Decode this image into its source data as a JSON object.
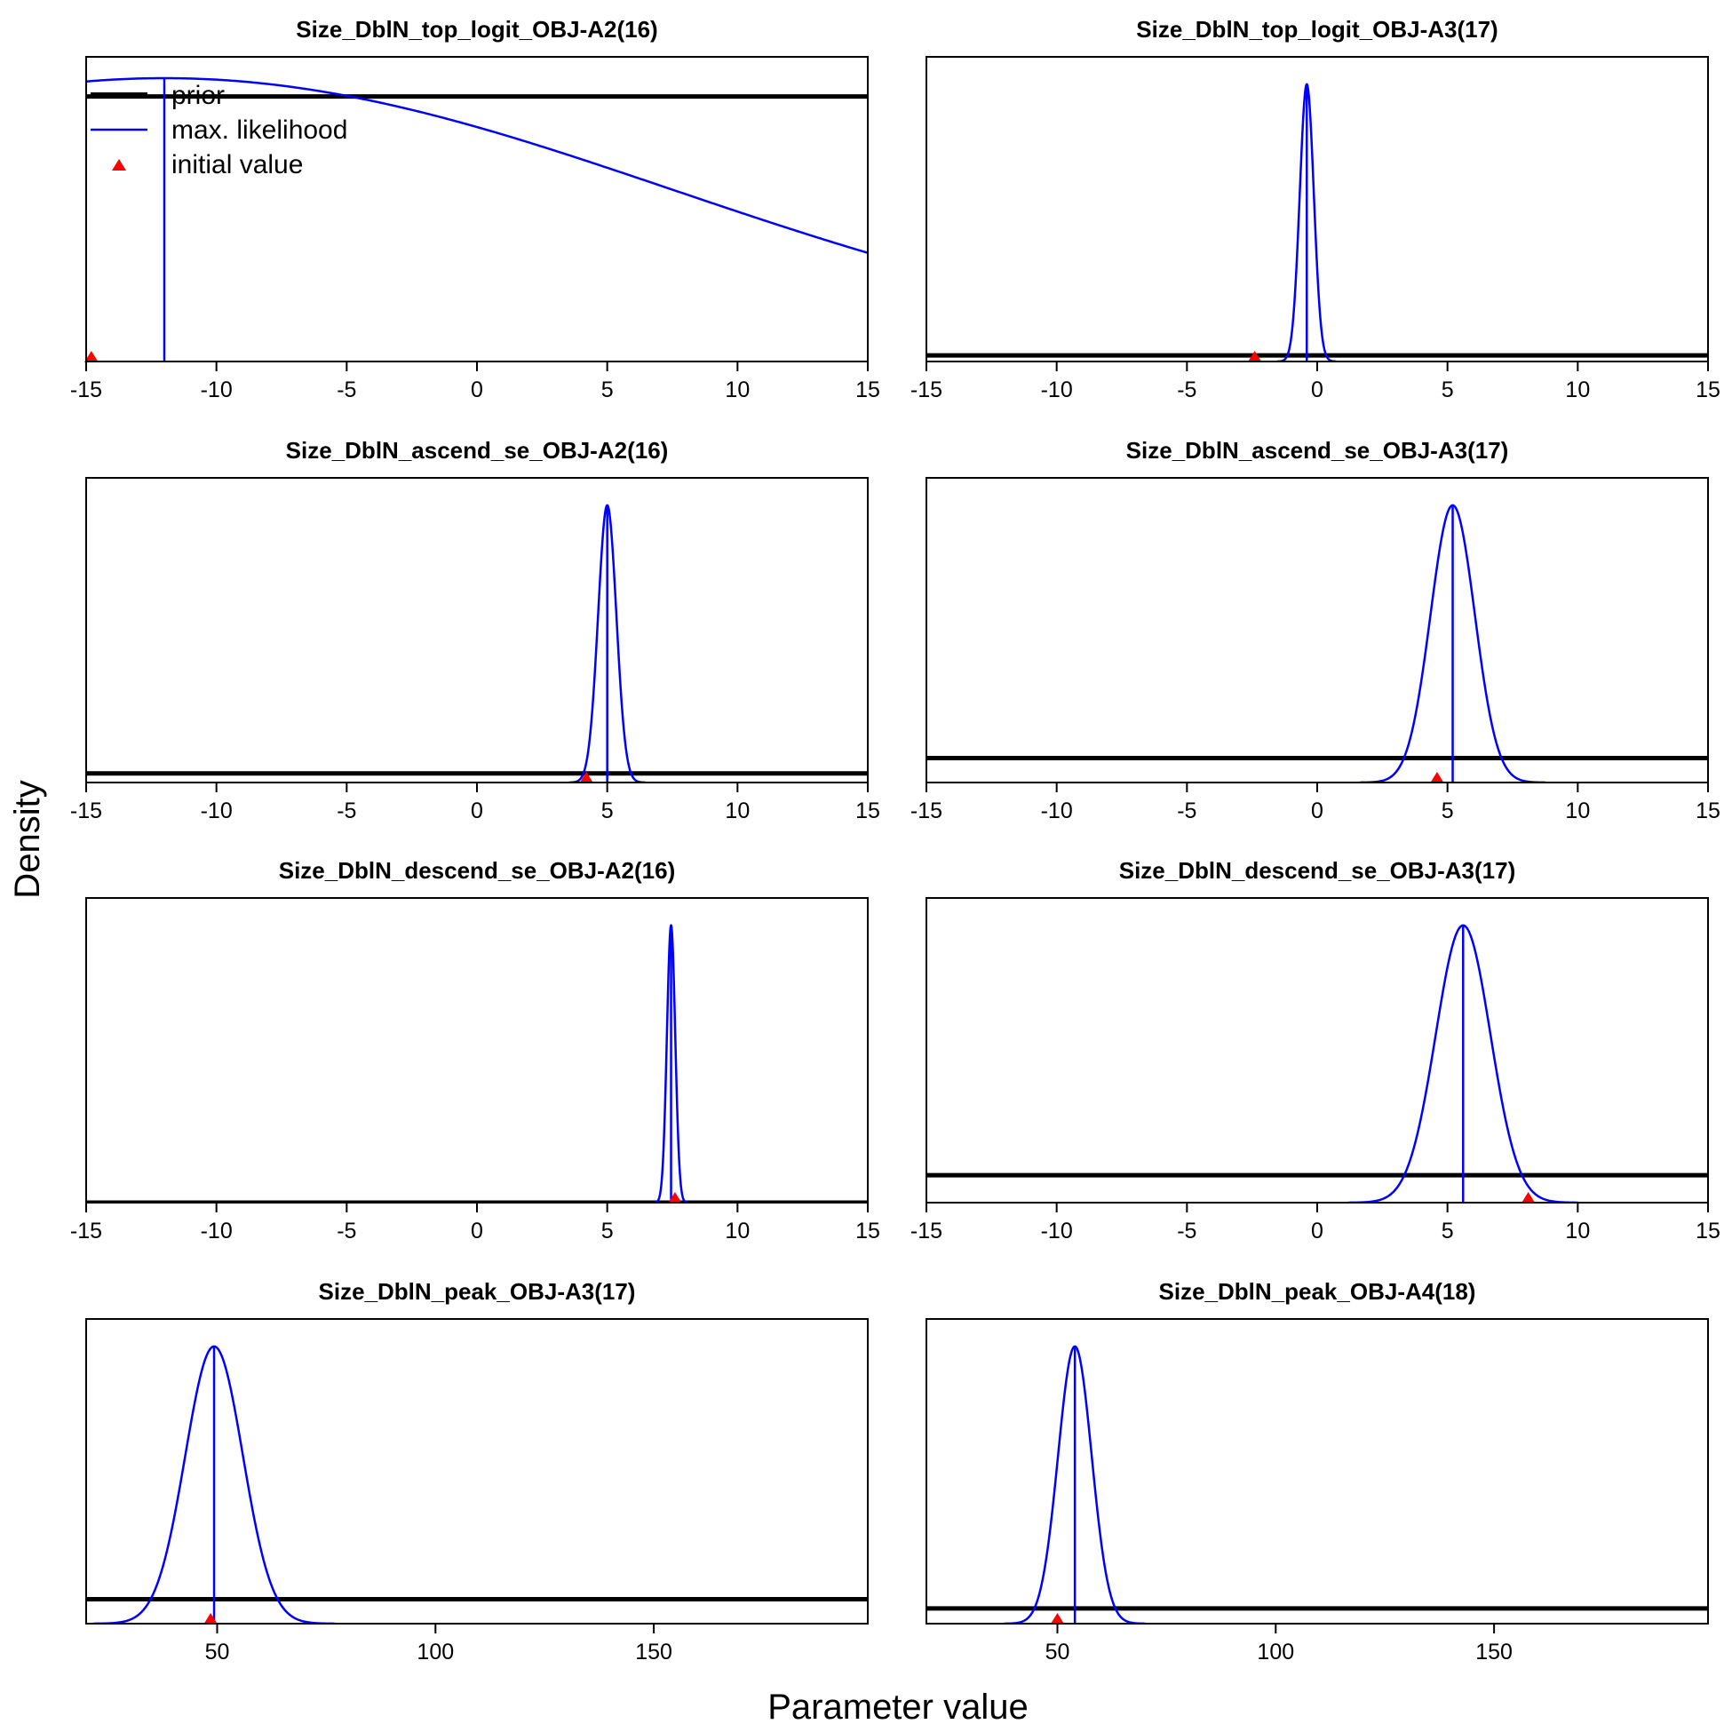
{
  "figure": {
    "ylabel": "Density",
    "xlabel": "Parameter value"
  },
  "legend": {
    "items": [
      {
        "label": "prior",
        "kind": "line-thick",
        "color": "#000000"
      },
      {
        "label": "max. likelihood",
        "kind": "line-thin",
        "color": "#0000ff"
      },
      {
        "label": "initial value",
        "kind": "triangle",
        "color": "#ff0000"
      }
    ]
  },
  "colors": {
    "prior": "#000000",
    "mle": "#0000ff",
    "initial": "#ff0000"
  },
  "chart_data": [
    {
      "type": "line",
      "title": "Size_DblN_top_logit_OBJ-A2(16)",
      "xlim": [
        -15,
        15
      ],
      "xticks": [
        -15,
        -10,
        -5,
        0,
        5,
        10,
        15
      ],
      "mle": {
        "mean": -12,
        "sd": 19.5,
        "peak": 0.93
      },
      "prior_level": 0.87,
      "initial_value": -14.8
    },
    {
      "type": "line",
      "title": "Size_DblN_top_logit_OBJ-A3(17)",
      "xlim": [
        -15,
        15
      ],
      "xticks": [
        -15,
        -10,
        -5,
        0,
        5,
        10,
        15
      ],
      "mle": {
        "mean": -0.4,
        "sd": 0.27,
        "peak": 0.91
      },
      "prior_level": 0.02,
      "initial_value": -2.4
    },
    {
      "type": "line",
      "title": "Size_DblN_ascend_se_OBJ-A2(16)",
      "xlim": [
        -15,
        15
      ],
      "xticks": [
        -15,
        -10,
        -5,
        0,
        5,
        10,
        15
      ],
      "mle": {
        "mean": 5.0,
        "sd": 0.35,
        "peak": 0.91
      },
      "prior_level": 0.03,
      "initial_value": 4.2
    },
    {
      "type": "line",
      "title": "Size_DblN_ascend_se_OBJ-A3(17)",
      "xlim": [
        -15,
        15
      ],
      "xticks": [
        -15,
        -10,
        -5,
        0,
        5,
        10,
        15
      ],
      "mle": {
        "mean": 5.2,
        "sd": 0.85,
        "peak": 0.91
      },
      "prior_level": 0.08,
      "initial_value": 4.6
    },
    {
      "type": "line",
      "title": "Size_DblN_descend_se_OBJ-A2(16)",
      "xlim": [
        -15,
        15
      ],
      "xticks": [
        -15,
        -10,
        -5,
        0,
        5,
        10,
        15
      ],
      "mle": {
        "mean": 7.45,
        "sd": 0.16,
        "peak": 0.91
      },
      "prior_level": 0.0,
      "initial_value": 7.6
    },
    {
      "type": "line",
      "title": "Size_DblN_descend_se_OBJ-A3(17)",
      "xlim": [
        -15,
        15
      ],
      "xticks": [
        -15,
        -10,
        -5,
        0,
        5,
        10,
        15
      ],
      "mle": {
        "mean": 5.6,
        "sd": 1.05,
        "peak": 0.91
      },
      "prior_level": 0.09,
      "initial_value": 8.1
    },
    {
      "type": "line",
      "title": "Size_DblN_peak_OBJ-A3(17)",
      "xlim": [
        20,
        199
      ],
      "xticks": [
        50,
        100,
        150
      ],
      "mle": {
        "mean": 49.3,
        "sd": 6.6,
        "peak": 0.91
      },
      "prior_level": 0.08,
      "initial_value": 48.5
    },
    {
      "type": "line",
      "title": "Size_DblN_peak_OBJ-A4(18)",
      "xlim": [
        20,
        199
      ],
      "xticks": [
        50,
        100,
        150
      ],
      "mle": {
        "mean": 54.0,
        "sd": 3.85,
        "peak": 0.91
      },
      "prior_level": 0.05,
      "initial_value": 50.0
    }
  ]
}
